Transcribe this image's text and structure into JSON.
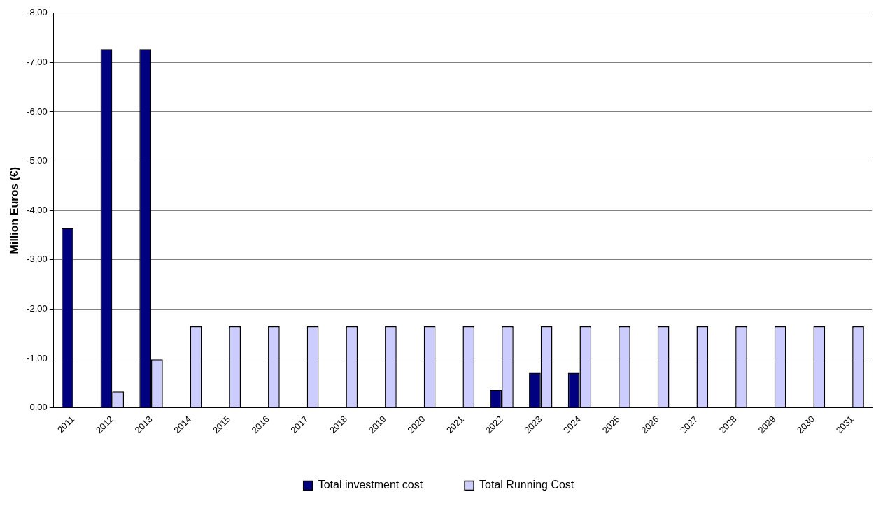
{
  "chart_data": {
    "type": "bar",
    "ylabel": "Million Euros (€)",
    "categories": [
      "2011",
      "2012",
      "2013",
      "2014",
      "2015",
      "2016",
      "2017",
      "2018",
      "2019",
      "2020",
      "2021",
      "2022",
      "2023",
      "2024",
      "2025",
      "2026",
      "2027",
      "2028",
      "2029",
      "2030",
      "2031"
    ],
    "series": [
      {
        "name": "Total investment cost",
        "color": "#000080",
        "values": [
          -3.64,
          -7.27,
          -7.27,
          0,
          0,
          0,
          0,
          0,
          0,
          0,
          0,
          -0.36,
          -0.71,
          -0.71,
          0,
          0,
          0,
          0,
          0,
          0,
          0
        ]
      },
      {
        "name": "Total Running Cost",
        "color": "#ccccff",
        "values": [
          0,
          -0.33,
          -0.98,
          -1.65,
          -1.65,
          -1.65,
          -1.65,
          -1.65,
          -1.65,
          -1.65,
          -1.65,
          -1.65,
          -1.65,
          -1.65,
          -1.65,
          -1.65,
          -1.65,
          -1.65,
          -1.65,
          -1.65,
          -1.65
        ]
      }
    ],
    "ylim": [
      0,
      -8
    ],
    "yticks": [
      {
        "value": 0,
        "label": "0,00"
      },
      {
        "value": -1,
        "label": "-1,00"
      },
      {
        "value": -2,
        "label": "-2,00"
      },
      {
        "value": -3,
        "label": "-3,00"
      },
      {
        "value": -4,
        "label": "-4,00"
      },
      {
        "value": -5,
        "label": "-5,00"
      },
      {
        "value": -6,
        "label": "-6,00"
      },
      {
        "value": -7,
        "label": "-7,00"
      },
      {
        "value": -8,
        "label": "-8,00"
      }
    ],
    "grid": "y",
    "legend": "bottom"
  }
}
